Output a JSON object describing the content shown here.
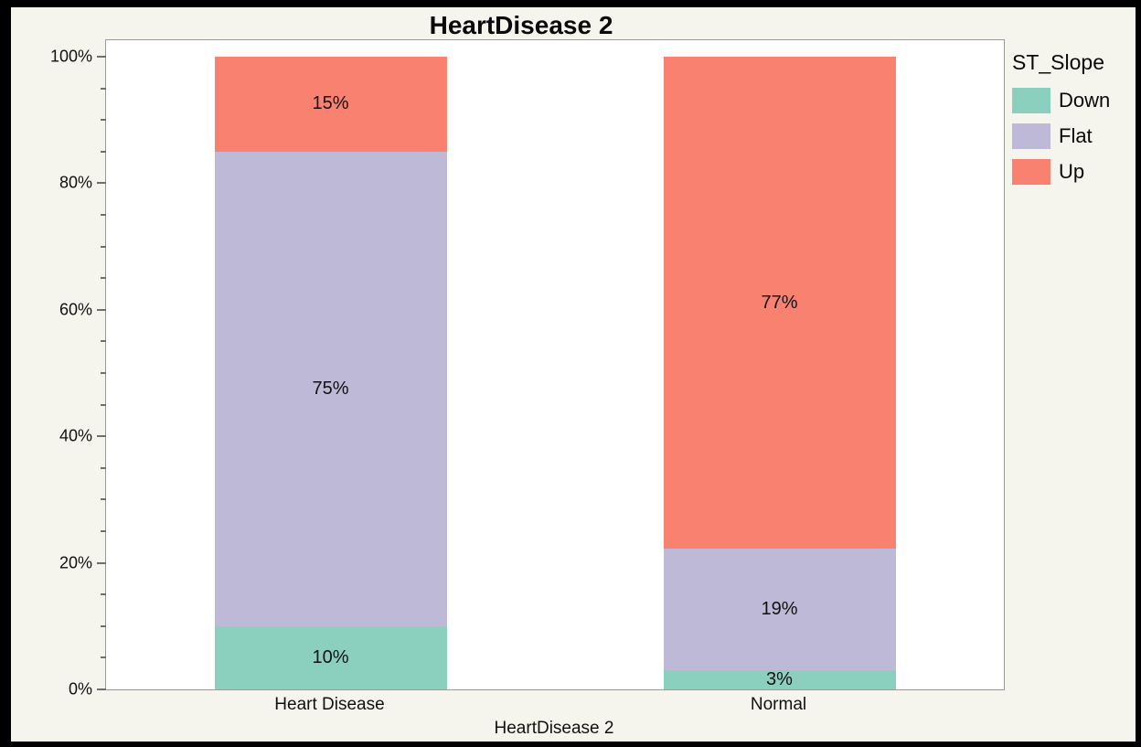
{
  "title": "HeartDisease 2",
  "colors": {
    "background": "#F5F4ED",
    "plot_background": "#FFFFFF",
    "plot_border": "#9A9A94",
    "tick": "#6F6F6F",
    "text": "#111111",
    "frame": "#000000",
    "down": "#8BD0BF",
    "flat": "#BFB9D8",
    "up": "#F9816F"
  },
  "chart_data": {
    "type": "bar",
    "stacked": true,
    "percent": true,
    "title": "HeartDisease 2",
    "xlabel": "HeartDisease 2",
    "ylabel": "",
    "categories": [
      "Heart Disease",
      "Normal"
    ],
    "series": [
      {
        "name": "Down",
        "color": "#8BD0BF",
        "values": [
          10,
          3
        ]
      },
      {
        "name": "Flat",
        "color": "#BFB9D8",
        "values": [
          75,
          19
        ]
      },
      {
        "name": "Up",
        "color": "#F9816F",
        "values": [
          15,
          77
        ]
      }
    ],
    "value_labels": [
      [
        "10%",
        "75%",
        "15%"
      ],
      [
        "3%",
        "19%",
        "77%"
      ]
    ],
    "ylim": [
      0,
      100
    ],
    "ytick_labels": [
      "0%",
      "20%",
      "40%",
      "60%",
      "80%",
      "100%"
    ],
    "ytick_values": [
      0,
      20,
      40,
      60,
      80,
      100
    ],
    "minor_tick_step": 5,
    "grid": false,
    "legend": {
      "title": "ST_Slope",
      "entries": [
        "Down",
        "Flat",
        "Up"
      ],
      "position": "right"
    }
  }
}
